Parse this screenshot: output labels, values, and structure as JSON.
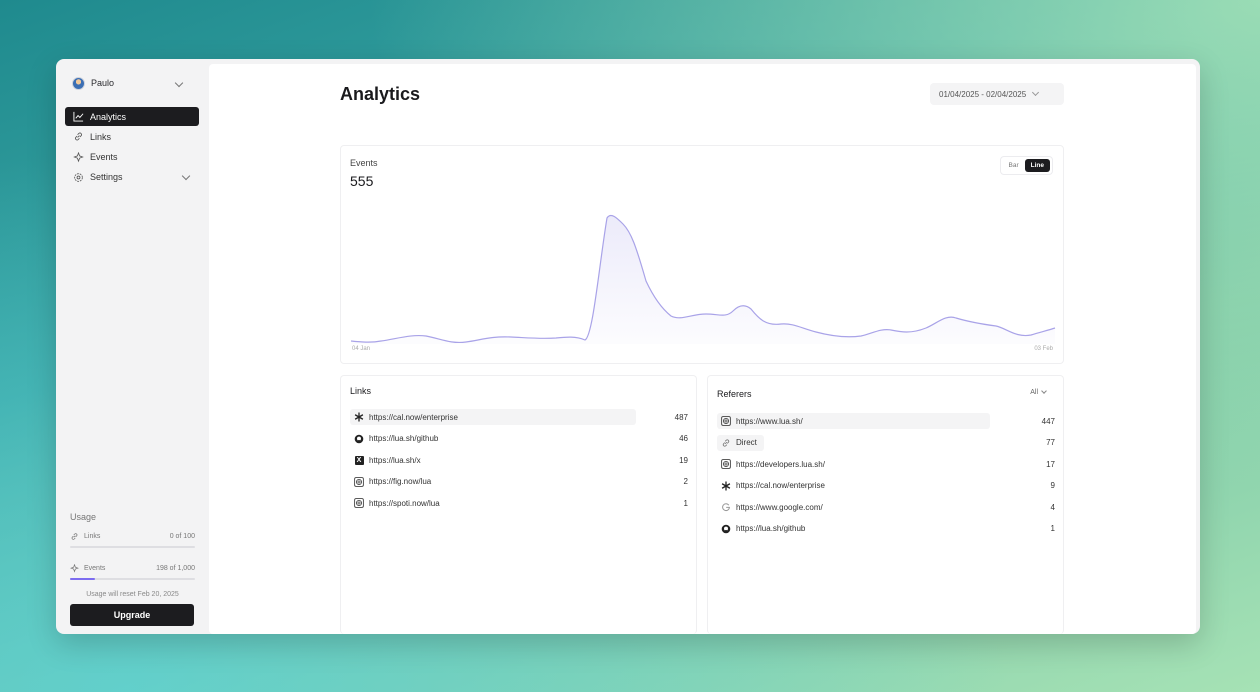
{
  "sidebar": {
    "account_name": "Paulo",
    "nav": [
      {
        "label": "Analytics",
        "icon": "line-chart-icon",
        "active": true
      },
      {
        "label": "Links",
        "icon": "link-icon"
      },
      {
        "label": "Events",
        "icon": "sparkle-icon"
      },
      {
        "label": "Settings",
        "icon": "gear-icon"
      }
    ],
    "usage": {
      "title": "Usage",
      "links": {
        "label": "Links",
        "count": "0 of 100",
        "fraction": 0.0
      },
      "events": {
        "label": "Events",
        "count": "198 of 1,000",
        "fraction": 0.198
      },
      "reset_note": "Usage will reset Feb 20, 2025"
    },
    "upgrade_label": "Upgrade"
  },
  "main": {
    "title": "Analytics",
    "date_range": "01/04/2025 - 02/04/2025",
    "events_card": {
      "label": "Events",
      "count": "555",
      "toggle": {
        "bar_label": "Bar",
        "line_label": "Line",
        "selected": "Line"
      },
      "x_start_label": "04 Jan",
      "x_end_label": "03 Feb",
      "line_color": "#a9a3e8"
    },
    "links": {
      "title": "Links",
      "rows": [
        {
          "url": "https://cal.now/enterprise",
          "count": "487",
          "icon": "asterisk-icon"
        },
        {
          "url": "https://lua.sh/github",
          "count": "46",
          "icon": "github-icon"
        },
        {
          "url": "https://lua.sh/x",
          "count": "19",
          "icon": "x-icon"
        },
        {
          "url": "https://fig.now/lua",
          "count": "2",
          "icon": "globe-icon"
        },
        {
          "url": "https://spoti.now/lua",
          "count": "1",
          "icon": "globe-icon"
        }
      ]
    },
    "referers": {
      "title": "Referers",
      "filter": "All",
      "rows": [
        {
          "url": "https://www.lua.sh/",
          "count": "447",
          "icon": "globe-icon"
        },
        {
          "url": "Direct",
          "count": "77",
          "icon": "link-icon"
        },
        {
          "url": "https://developers.lua.sh/",
          "count": "17",
          "icon": "globe-icon"
        },
        {
          "url": "https://cal.now/enterprise",
          "count": "9",
          "icon": "asterisk-icon"
        },
        {
          "url": "https://www.google.com/",
          "count": "4",
          "icon": "google-icon"
        },
        {
          "url": "https://lua.sh/github",
          "count": "1",
          "icon": "github-icon"
        }
      ]
    }
  }
}
